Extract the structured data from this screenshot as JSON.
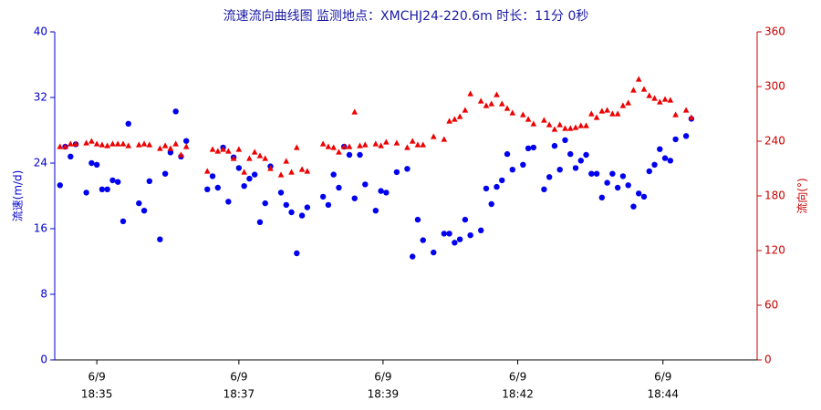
{
  "chart_data": {
    "type": "scatter",
    "title": "流速流向曲线图 监测地点：XMCHJ24-220.6m  时长：11分 0秒",
    "ylabel": "流速(m/d)",
    "y2label": "流向(°)",
    "x": [
      0,
      1,
      2,
      3,
      5,
      6,
      7,
      8,
      9,
      10,
      11,
      12,
      13,
      15,
      16,
      17,
      19,
      20,
      21,
      22,
      23,
      24,
      28,
      29,
      30,
      31,
      32,
      33,
      34,
      35,
      36,
      37,
      38,
      39,
      40,
      42,
      43,
      44,
      45,
      46,
      47,
      50,
      51,
      52,
      53,
      54,
      55,
      56,
      57,
      58,
      60,
      61,
      62,
      64,
      66,
      67,
      68,
      69,
      71,
      73,
      74,
      75,
      76,
      77,
      78,
      80,
      81,
      82,
      83,
      84,
      85,
      86,
      88,
      89,
      90,
      92,
      93,
      94,
      95,
      96,
      97,
      98,
      99,
      100,
      101,
      102,
      103,
      104,
      105,
      106,
      107,
      108,
      109,
      110,
      111,
      112,
      113,
      114,
      115,
      116,
      117,
      119,
      120
    ],
    "series": [
      {
        "color": "#0000ee",
        "marker": "circle",
        "axis": "y",
        "values": [
          21.3,
          26.0,
          24.8,
          26.3,
          20.4,
          24.0,
          23.8,
          20.8,
          20.8,
          21.9,
          21.7,
          16.9,
          28.8,
          19.1,
          18.2,
          21.8,
          14.7,
          22.7,
          25.3,
          30.3,
          24.8,
          26.7,
          20.8,
          22.4,
          21.0,
          25.9,
          19.3,
          24.7,
          23.4,
          21.2,
          22.1,
          22.6,
          16.8,
          19.1,
          23.6,
          20.4,
          18.9,
          18.0,
          13.0,
          17.6,
          18.6,
          19.9,
          18.9,
          22.6,
          21.0,
          26.0,
          25.0,
          19.7,
          25.0,
          21.4,
          18.2,
          20.6,
          20.4,
          22.9,
          23.3,
          12.6,
          17.1,
          14.6,
          13.1,
          15.4,
          15.4,
          14.3,
          14.7,
          17.1,
          15.2,
          15.8,
          20.9,
          19.0,
          21.1,
          21.9,
          25.1,
          23.2,
          23.8,
          25.8,
          25.9,
          20.8,
          22.3,
          26.1,
          23.2,
          26.8,
          25.1,
          23.4,
          24.3,
          25.0,
          22.7,
          22.7,
          19.8,
          21.6,
          22.7,
          21.0,
          22.4,
          21.3,
          18.7,
          20.3,
          19.9,
          23.0,
          23.8,
          25.7,
          24.6,
          24.3,
          26.9,
          27.3,
          29.4
        ]
      },
      {
        "color": "#ee0000",
        "marker": "triangle",
        "axis": "y2",
        "values": [
          234,
          234,
          237,
          237,
          238,
          240,
          237,
          236,
          235,
          237,
          237,
          237,
          235,
          236,
          237,
          236,
          232,
          235,
          232,
          237,
          225,
          234,
          207,
          231,
          229,
          231,
          229,
          221,
          231,
          206,
          221,
          228,
          224,
          221,
          210,
          203,
          218,
          206,
          233,
          209,
          207,
          237,
          234,
          233,
          228,
          234,
          234,
          272,
          235,
          236,
          237,
          235,
          239,
          238,
          233,
          240,
          236,
          236,
          245,
          242,
          262,
          264,
          267,
          274,
          292,
          284,
          279,
          281,
          291,
          281,
          276,
          271,
          269,
          264,
          259,
          263,
          258,
          253,
          258,
          254,
          254,
          255,
          257,
          257,
          270,
          266,
          273,
          274,
          270,
          270,
          279,
          282,
          296,
          308,
          297,
          290,
          287,
          283,
          286,
          285,
          269,
          274,
          266
        ]
      }
    ],
    "xlim": [
      -1,
      132.5
    ],
    "xticks": [
      {
        "value": 7,
        "label": [
          "6/9",
          "18:35"
        ]
      },
      {
        "value": 34,
        "label": [
          "6/9",
          "18:37"
        ]
      },
      {
        "value": 61.4,
        "label": [
          "6/9",
          "18:39"
        ]
      },
      {
        "value": 87,
        "label": [
          "6/9",
          "18:42"
        ]
      },
      {
        "value": 114.6,
        "label": [
          "6/9",
          "18:44"
        ]
      }
    ],
    "ylim": [
      0,
      40
    ],
    "yticks": [
      0,
      8,
      16,
      24,
      32,
      40
    ],
    "y2lim": [
      0,
      360
    ],
    "y2ticks": [
      0,
      60,
      120,
      180,
      240,
      300,
      360
    ],
    "grid": false
  }
}
